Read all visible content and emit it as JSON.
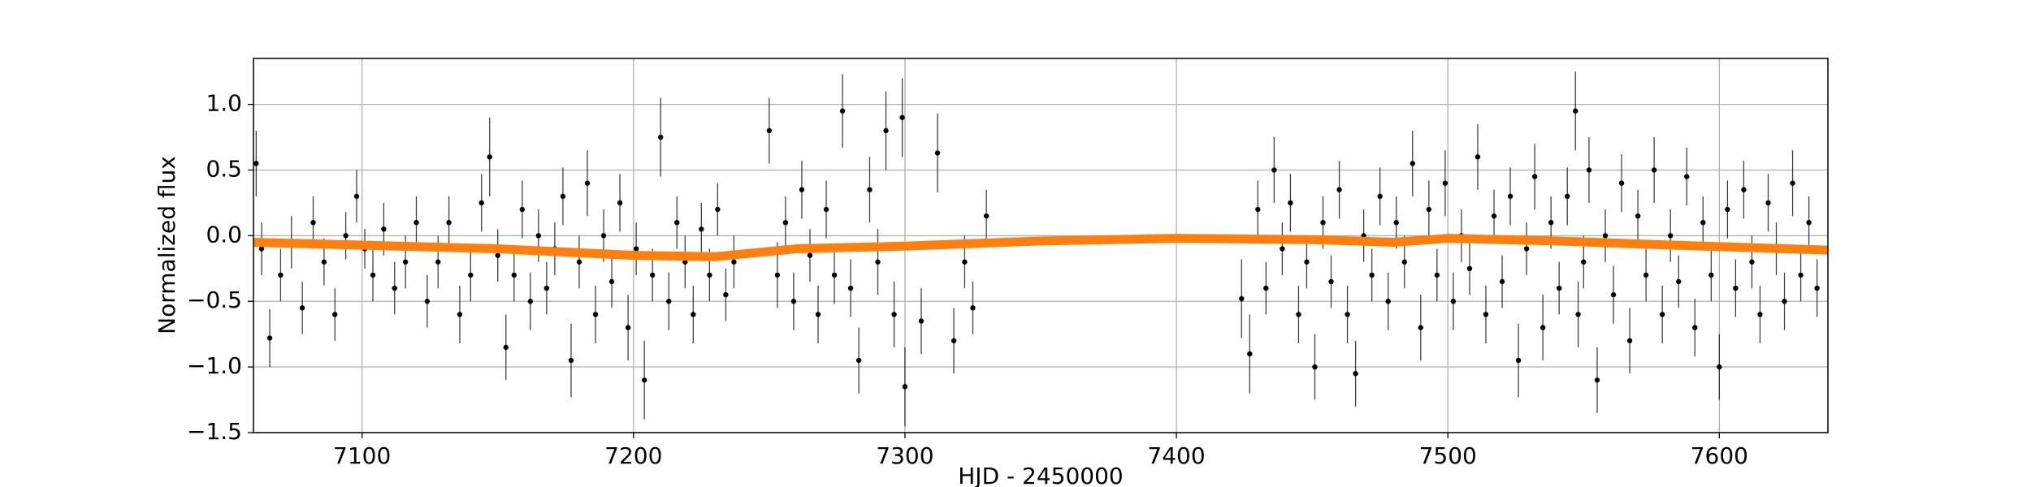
{
  "chart_data": {
    "type": "scatter",
    "x_label": "HJD - 2450000",
    "y_label": "Normalized flux",
    "grid": true,
    "xlim": [
      7060,
      7640
    ],
    "ylim": [
      -1.5,
      1.35
    ],
    "xticks": [
      7100,
      7200,
      7300,
      7400,
      7500,
      7600
    ],
    "yticks": [
      {
        "value": -1.5,
        "label": "−1.5"
      },
      {
        "value": -1.0,
        "label": "−1.0"
      },
      {
        "value": -0.5,
        "label": "−0.5"
      },
      {
        "value": 0.0,
        "label": "0.0"
      },
      {
        "value": 0.5,
        "label": "0.5"
      },
      {
        "value": 1.0,
        "label": "1.0"
      }
    ],
    "series": [
      {
        "type": "errorbar",
        "color": "#000000",
        "x": [
          7061,
          7063,
          7066,
          7070,
          7074,
          7078,
          7082,
          7086,
          7090,
          7094,
          7098,
          7101,
          7104,
          7108,
          7112,
          7116,
          7120,
          7124,
          7128,
          7132,
          7136,
          7140,
          7144,
          7147,
          7150,
          7153,
          7156,
          7159,
          7162,
          7165,
          7168,
          7171,
          7174,
          7177,
          7180,
          7183,
          7186,
          7189,
          7192,
          7195,
          7198,
          7201,
          7204,
          7207,
          7210,
          7213,
          7216,
          7219,
          7222,
          7225,
          7228,
          7231,
          7234,
          7237,
          7250,
          7253,
          7256,
          7259,
          7262,
          7265,
          7268,
          7271,
          7274,
          7277,
          7280,
          7283,
          7287,
          7290,
          7293,
          7296,
          7299,
          7300,
          7306,
          7312,
          7318,
          7322,
          7325,
          7330,
          7424,
          7427,
          7430,
          7433,
          7436,
          7439,
          7442,
          7445,
          7448,
          7451,
          7454,
          7457,
          7460,
          7463,
          7466,
          7469,
          7472,
          7475,
          7478,
          7481,
          7484,
          7487,
          7490,
          7493,
          7496,
          7499,
          7502,
          7505,
          7508,
          7511,
          7514,
          7517,
          7520,
          7523,
          7526,
          7529,
          7532,
          7535,
          7538,
          7541,
          7544,
          7547,
          7548,
          7550,
          7552,
          7555,
          7558,
          7561,
          7564,
          7567,
          7570,
          7573,
          7576,
          7579,
          7582,
          7585,
          7588,
          7591,
          7594,
          7597,
          7600,
          7603,
          7606,
          7609,
          7612,
          7615,
          7618,
          7621,
          7624,
          7627,
          7630,
          7633,
          7636
        ],
        "values": [
          0.55,
          -0.1,
          -0.78,
          -0.3,
          -0.05,
          -0.55,
          0.1,
          -0.2,
          -0.6,
          0.0,
          0.3,
          -0.1,
          -0.3,
          0.05,
          -0.4,
          -0.2,
          0.1,
          -0.5,
          -0.2,
          0.1,
          -0.6,
          -0.3,
          0.25,
          0.6,
          -0.15,
          -0.85,
          -0.3,
          0.2,
          -0.5,
          0.0,
          -0.4,
          -0.1,
          0.3,
          -0.95,
          -0.2,
          0.4,
          -0.6,
          0.0,
          -0.35,
          0.25,
          -0.7,
          -0.1,
          -1.1,
          -0.3,
          0.75,
          -0.5,
          0.1,
          -0.2,
          -0.6,
          0.05,
          -0.3,
          0.2,
          -0.45,
          -0.2,
          0.8,
          -0.3,
          0.1,
          -0.5,
          0.35,
          -0.15,
          -0.6,
          0.2,
          -0.3,
          0.95,
          -0.4,
          -0.95,
          0.35,
          -0.2,
          0.8,
          -0.6,
          0.9,
          -1.15,
          -0.65,
          0.63,
          -0.8,
          -0.2,
          -0.55,
          0.15,
          -0.48,
          -0.9,
          0.2,
          -0.4,
          0.5,
          -0.1,
          0.25,
          -0.6,
          -0.2,
          -1.0,
          0.1,
          -0.35,
          0.35,
          -0.6,
          -1.05,
          0.0,
          -0.3,
          0.3,
          -0.5,
          0.1,
          -0.2,
          0.55,
          -0.7,
          0.2,
          -0.3,
          0.4,
          -0.5,
          0.0,
          -0.25,
          0.6,
          -0.6,
          0.15,
          -0.35,
          0.3,
          -0.95,
          -0.1,
          0.45,
          -0.7,
          0.1,
          -0.4,
          0.3,
          0.95,
          -0.6,
          -0.2,
          0.5,
          -1.1,
          0.0,
          -0.45,
          0.4,
          -0.8,
          0.15,
          -0.3,
          0.5,
          -0.6,
          0.0,
          -0.35,
          0.45,
          -0.7,
          0.1,
          -0.3,
          -1.0,
          0.2,
          -0.4,
          0.35,
          -0.2,
          -0.6,
          0.25,
          -0.1,
          -0.5,
          0.4,
          -0.3,
          0.1,
          -0.4
        ],
        "errors": [
          0.25,
          0.2,
          0.22,
          0.2,
          0.2,
          0.2,
          0.2,
          0.18,
          0.2,
          0.18,
          0.2,
          0.15,
          0.2,
          0.2,
          0.2,
          0.2,
          0.2,
          0.2,
          0.2,
          0.2,
          0.22,
          0.2,
          0.22,
          0.3,
          0.2,
          0.25,
          0.2,
          0.22,
          0.22,
          0.2,
          0.2,
          0.2,
          0.22,
          0.28,
          0.2,
          0.25,
          0.22,
          0.2,
          0.2,
          0.22,
          0.25,
          0.2,
          0.3,
          0.2,
          0.3,
          0.22,
          0.2,
          0.2,
          0.22,
          0.2,
          0.2,
          0.2,
          0.2,
          0.2,
          0.25,
          0.25,
          0.2,
          0.22,
          0.22,
          0.2,
          0.22,
          0.22,
          0.22,
          0.28,
          0.22,
          0.25,
          0.25,
          0.25,
          0.3,
          0.25,
          0.3,
          0.3,
          0.25,
          0.3,
          0.25,
          0.2,
          0.2,
          0.2,
          0.3,
          0.3,
          0.22,
          0.2,
          0.25,
          0.2,
          0.22,
          0.22,
          0.2,
          0.25,
          0.2,
          0.2,
          0.22,
          0.22,
          0.25,
          0.2,
          0.2,
          0.22,
          0.22,
          0.2,
          0.2,
          0.25,
          0.25,
          0.22,
          0.2,
          0.25,
          0.22,
          0.2,
          0.2,
          0.25,
          0.22,
          0.2,
          0.2,
          0.22,
          0.28,
          0.2,
          0.25,
          0.25,
          0.2,
          0.2,
          0.22,
          0.3,
          0.25,
          0.2,
          0.25,
          0.25,
          0.2,
          0.22,
          0.22,
          0.25,
          0.2,
          0.2,
          0.25,
          0.22,
          0.2,
          0.2,
          0.22,
          0.22,
          0.2,
          0.2,
          0.25,
          0.22,
          0.22,
          0.22,
          0.2,
          0.22,
          0.22,
          0.2,
          0.22,
          0.25,
          0.2,
          0.2,
          0.22
        ]
      },
      {
        "type": "line",
        "color": "#ff7f0e",
        "x": [
          7060,
          7150,
          7200,
          7230,
          7260,
          7300,
          7350,
          7400,
          7450,
          7480,
          7500,
          7540,
          7580,
          7640
        ],
        "values": [
          -0.05,
          -0.1,
          -0.15,
          -0.16,
          -0.1,
          -0.08,
          -0.04,
          -0.02,
          -0.03,
          -0.05,
          -0.02,
          -0.04,
          -0.07,
          -0.11
        ]
      }
    ]
  }
}
